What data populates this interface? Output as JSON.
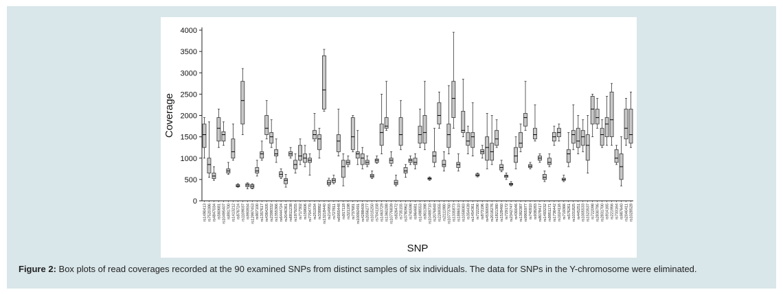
{
  "figure": {
    "label": "Figure 2:",
    "caption": " Box plots of read coverages recorded at the 90 examined SNPs from distinct samples of six individuals. The data for SNPs in the Y-chromosome were eliminated."
  },
  "colors": {
    "panel": "#d9e6ea",
    "box_fill": "#c8c8c8",
    "stroke": "#333333"
  },
  "chart_data": {
    "type": "box",
    "xlabel": "SNP",
    "ylabel": "Coverage",
    "ylim": [
      0,
      4000
    ],
    "yticks": [
      0,
      500,
      1000,
      1500,
      2000,
      2500,
      3000,
      3500,
      4000
    ],
    "grid": false,
    "categories": [
      "rs1490413",
      "rs7520386",
      "rs4847034",
      "rs560681",
      "rs10495407",
      "rs891700",
      "rs1413212",
      "rs876724",
      "rs1109037",
      "rs993934",
      "rs12997453",
      "rs907100",
      "rs1357617",
      "rs4364205",
      "rs2399332",
      "rs1355366",
      "rs6444724",
      "rs2046361",
      "rs6811238",
      "rs1979255",
      "rs717302",
      "rs159606",
      "rs7704770",
      "rs251934",
      "rs338882",
      "rs13218440",
      "rs214955",
      "rs727811",
      "rs6955448",
      "rs917118",
      "rs321198",
      "rs737681",
      "rs10092491",
      "rs4288409",
      "rs2056277",
      "rs1015250",
      "rs7041158",
      "rs1463729",
      "rs1360288",
      "rs10776839",
      "rs826472",
      "rs735155",
      "rs3780962",
      "rs740598",
      "rs964681",
      "rs1498553",
      "rs901398",
      "rs10488710",
      "rs2076848",
      "rs2269355",
      "rs2111980",
      "rs10773760",
      "rs1335873",
      "rs1886510",
      "rs1058083",
      "rs354439",
      "rs1454361",
      "rs722290",
      "rs873196",
      "rs4530059",
      "rs2016276",
      "rs1821380",
      "rs1528460",
      "rs729172",
      "rs2342747",
      "rs430046",
      "rs1382387",
      "rs9905977",
      "rs740910",
      "rs938283",
      "rs8078417",
      "rs1493232",
      "rs9951171",
      "rs1736442",
      "rs1024116",
      "rs719366",
      "rs576261",
      "rs1031825",
      "rs445251",
      "rs1005533",
      "rs1523537",
      "rs722098",
      "rs2830795",
      "rs2831700",
      "rs914165",
      "rs221956",
      "rs733164",
      "rs987640",
      "rs2040411",
      "rs1028528"
    ],
    "values": [
      {
        "min": 1000,
        "q1": 1250,
        "median": 1550,
        "q3": 1800,
        "max": 1950
      },
      {
        "min": 550,
        "q1": 650,
        "median": 850,
        "q3": 1000,
        "max": 1850
      },
      {
        "min": 480,
        "q1": 520,
        "median": 580,
        "q3": 650,
        "max": 800
      },
      {
        "min": 1250,
        "q1": 1400,
        "median": 1700,
        "q3": 1950,
        "max": 2150
      },
      {
        "min": 1300,
        "q1": 1400,
        "median": 1550,
        "q3": 1620,
        "max": 1850
      },
      {
        "min": 620,
        "q1": 650,
        "median": 700,
        "q3": 750,
        "max": 900
      },
      {
        "min": 950,
        "q1": 1000,
        "median": 1150,
        "q3": 1450,
        "max": 1800
      },
      {
        "min": 320,
        "q1": 330,
        "median": 350,
        "q3": 380,
        "max": 400
      },
      {
        "min": 1550,
        "q1": 1800,
        "median": 2350,
        "q3": 2800,
        "max": 3100
      },
      {
        "min": 280,
        "q1": 330,
        "median": 370,
        "q3": 400,
        "max": 420
      },
      {
        "min": 280,
        "q1": 300,
        "median": 340,
        "q3": 380,
        "max": 400
      },
      {
        "min": 580,
        "q1": 650,
        "median": 700,
        "q3": 780,
        "max": 950
      },
      {
        "min": 950,
        "q1": 1000,
        "median": 1100,
        "q3": 1150,
        "max": 1400
      },
      {
        "min": 1450,
        "q1": 1550,
        "median": 1700,
        "q3": 2000,
        "max": 2350
      },
      {
        "min": 1250,
        "q1": 1350,
        "median": 1500,
        "q3": 1600,
        "max": 1900
      },
      {
        "min": 900,
        "q1": 1050,
        "median": 1100,
        "q3": 1200,
        "max": 1450
      },
      {
        "min": 520,
        "q1": 560,
        "median": 620,
        "q3": 680,
        "max": 750
      },
      {
        "min": 320,
        "q1": 400,
        "median": 480,
        "q3": 520,
        "max": 620
      },
      {
        "min": 1000,
        "q1": 1050,
        "median": 1100,
        "q3": 1150,
        "max": 1250
      },
      {
        "min": 650,
        "q1": 750,
        "median": 850,
        "q3": 950,
        "max": 1100
      },
      {
        "min": 850,
        "q1": 950,
        "median": 1050,
        "q3": 1300,
        "max": 1450
      },
      {
        "min": 800,
        "q1": 900,
        "median": 1000,
        "q3": 1100,
        "max": 1300
      },
      {
        "min": 600,
        "q1": 900,
        "median": 950,
        "q3": 1000,
        "max": 1100
      },
      {
        "min": 1400,
        "q1": 1450,
        "median": 1550,
        "q3": 1650,
        "max": 2050
      },
      {
        "min": 1000,
        "q1": 1200,
        "median": 1450,
        "q3": 1550,
        "max": 1700
      },
      {
        "min": 2100,
        "q1": 2150,
        "median": 2600,
        "q3": 3400,
        "max": 3550
      },
      {
        "min": 350,
        "q1": 380,
        "median": 420,
        "q3": 480,
        "max": 530
      },
      {
        "min": 400,
        "q1": 430,
        "median": 480,
        "q3": 520,
        "max": 600
      },
      {
        "min": 1050,
        "q1": 1150,
        "median": 1400,
        "q3": 1550,
        "max": 2150
      },
      {
        "min": 350,
        "q1": 550,
        "median": 800,
        "q3": 950,
        "max": 1100
      },
      {
        "min": 800,
        "q1": 850,
        "median": 900,
        "q3": 950,
        "max": 1050
      },
      {
        "min": 1150,
        "q1": 1200,
        "median": 1500,
        "q3": 1950,
        "max": 2000
      },
      {
        "min": 850,
        "q1": 1000,
        "median": 1100,
        "q3": 1150,
        "max": 1650
      },
      {
        "min": 750,
        "q1": 850,
        "median": 1000,
        "q3": 1100,
        "max": 1250
      },
      {
        "min": 800,
        "q1": 850,
        "median": 900,
        "q3": 950,
        "max": 1050
      },
      {
        "min": 520,
        "q1": 550,
        "median": 580,
        "q3": 620,
        "max": 700
      },
      {
        "min": 880,
        "q1": 900,
        "median": 950,
        "q3": 980,
        "max": 1050
      },
      {
        "min": 1100,
        "q1": 1300,
        "median": 1600,
        "q3": 1800,
        "max": 2500
      },
      {
        "min": 1650,
        "q1": 1700,
        "median": 1750,
        "q3": 1950,
        "max": 2800
      },
      {
        "min": 820,
        "q1": 880,
        "median": 950,
        "q3": 1000,
        "max": 1150
      },
      {
        "min": 350,
        "q1": 380,
        "median": 420,
        "q3": 480,
        "max": 600
      },
      {
        "min": 1200,
        "q1": 1300,
        "median": 1550,
        "q3": 1950,
        "max": 2350
      },
      {
        "min": 550,
        "q1": 650,
        "median": 700,
        "q3": 780,
        "max": 850
      },
      {
        "min": 850,
        "q1": 900,
        "median": 950,
        "q3": 980,
        "max": 1050
      },
      {
        "min": 750,
        "q1": 850,
        "median": 900,
        "q3": 1000,
        "max": 1100
      },
      {
        "min": 1250,
        "q1": 1350,
        "median": 1550,
        "q3": 1750,
        "max": 2150
      },
      {
        "min": 1200,
        "q1": 1350,
        "median": 1600,
        "q3": 2000,
        "max": 2800
      },
      {
        "min": 480,
        "q1": 500,
        "median": 520,
        "q3": 540,
        "max": 560
      },
      {
        "min": 800,
        "q1": 900,
        "median": 1050,
        "q3": 1150,
        "max": 1700
      },
      {
        "min": 1700,
        "q1": 1800,
        "median": 2000,
        "q3": 2300,
        "max": 2550
      },
      {
        "min": 700,
        "q1": 800,
        "median": 850,
        "q3": 950,
        "max": 1150
      },
      {
        "min": 1100,
        "q1": 1250,
        "median": 1550,
        "q3": 1800,
        "max": 2700
      },
      {
        "min": 1700,
        "q1": 1950,
        "median": 2400,
        "q3": 2800,
        "max": 3950
      },
      {
        "min": 700,
        "q1": 780,
        "median": 850,
        "q3": 900,
        "max": 1100
      },
      {
        "min": 1500,
        "q1": 1600,
        "median": 1650,
        "q3": 2100,
        "max": 2850
      },
      {
        "min": 1100,
        "q1": 1300,
        "median": 1400,
        "q3": 1600,
        "max": 1750
      },
      {
        "min": 1050,
        "q1": 1250,
        "median": 1500,
        "q3": 1600,
        "max": 2300
      },
      {
        "min": 560,
        "q1": 580,
        "median": 600,
        "q3": 630,
        "max": 650
      },
      {
        "min": 1000,
        "q1": 1100,
        "median": 1150,
        "q3": 1200,
        "max": 1300
      },
      {
        "min": 750,
        "q1": 950,
        "median": 1250,
        "q3": 1500,
        "max": 2050
      },
      {
        "min": 850,
        "q1": 950,
        "median": 1150,
        "q3": 1350,
        "max": 2000
      },
      {
        "min": 1250,
        "q1": 1300,
        "median": 1450,
        "q3": 1650,
        "max": 1900
      },
      {
        "min": 680,
        "q1": 720,
        "median": 780,
        "q3": 850,
        "max": 950
      },
      {
        "min": 500,
        "q1": 550,
        "median": 580,
        "q3": 600,
        "max": 650
      },
      {
        "min": 350,
        "q1": 370,
        "median": 390,
        "q3": 410,
        "max": 450
      },
      {
        "min": 750,
        "q1": 900,
        "median": 1050,
        "q3": 1250,
        "max": 1500
      },
      {
        "min": 1150,
        "q1": 1250,
        "median": 1350,
        "q3": 1600,
        "max": 1800
      },
      {
        "min": 1650,
        "q1": 1750,
        "median": 1950,
        "q3": 2050,
        "max": 2800
      },
      {
        "min": 750,
        "q1": 780,
        "median": 810,
        "q3": 850,
        "max": 900
      },
      {
        "min": 1400,
        "q1": 1450,
        "median": 1550,
        "q3": 1700,
        "max": 2250
      },
      {
        "min": 900,
        "q1": 950,
        "median": 1000,
        "q3": 1050,
        "max": 1100
      },
      {
        "min": 450,
        "q1": 500,
        "median": 550,
        "q3": 620,
        "max": 700
      },
      {
        "min": 800,
        "q1": 850,
        "median": 900,
        "q3": 1000,
        "max": 1100
      },
      {
        "min": 1300,
        "q1": 1400,
        "median": 1500,
        "q3": 1600,
        "max": 1750
      },
      {
        "min": 1400,
        "q1": 1500,
        "median": 1600,
        "q3": 1700,
        "max": 1800
      },
      {
        "min": 450,
        "q1": 480,
        "median": 500,
        "q3": 530,
        "max": 600
      },
      {
        "min": 800,
        "q1": 900,
        "median": 1100,
        "q3": 1200,
        "max": 1600
      },
      {
        "min": 1200,
        "q1": 1350,
        "median": 1550,
        "q3": 1650,
        "max": 2250
      },
      {
        "min": 1100,
        "q1": 1250,
        "median": 1400,
        "q3": 1700,
        "max": 2000
      },
      {
        "min": 1150,
        "q1": 1300,
        "median": 1500,
        "q3": 1650,
        "max": 1900
      },
      {
        "min": 650,
        "q1": 950,
        "median": 1300,
        "q3": 1550,
        "max": 2000
      },
      {
        "min": 1500,
        "q1": 1800,
        "median": 2150,
        "q3": 2450,
        "max": 2500
      },
      {
        "min": 1700,
        "q1": 1800,
        "median": 1950,
        "q3": 2150,
        "max": 2400
      },
      {
        "min": 1250,
        "q1": 1300,
        "median": 1550,
        "q3": 1700,
        "max": 1900
      },
      {
        "min": 1300,
        "q1": 1500,
        "median": 1800,
        "q3": 1950,
        "max": 2450
      },
      {
        "min": 1300,
        "q1": 1500,
        "median": 1900,
        "q3": 2550,
        "max": 2750
      },
      {
        "min": 850,
        "q1": 900,
        "median": 1000,
        "q3": 1200,
        "max": 1300
      },
      {
        "min": 350,
        "q1": 500,
        "median": 800,
        "q3": 1100,
        "max": 1500
      },
      {
        "min": 1300,
        "q1": 1450,
        "median": 1700,
        "q3": 2150,
        "max": 2400
      },
      {
        "min": 1250,
        "q1": 1350,
        "median": 1550,
        "q3": 2150,
        "max": 2550
      }
    ]
  }
}
